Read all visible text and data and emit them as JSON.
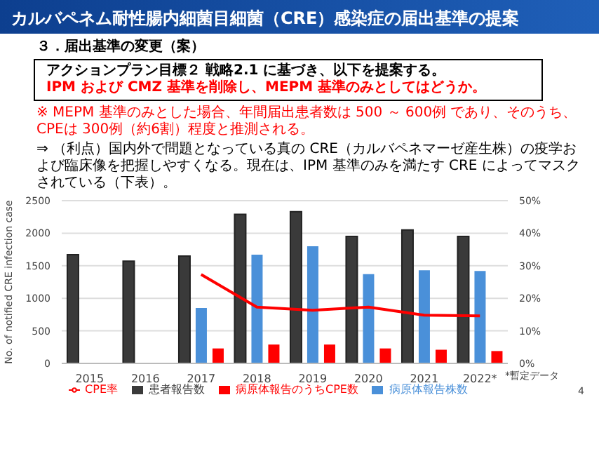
{
  "chart_data": {
    "type": "bar",
    "title": "カルバペネム耐性腸内細菌目細菌（CRE）感染症の届出基準の提案",
    "subtitle": "３．届出基準の変更（案）",
    "annotations": [
      "アクションプラン目標２ 戦略2.1 に基づき、以下を提案する。",
      "IPM および CMZ 基準を削除し、MEPM 基準のみとしてはどうか。",
      "※ MEPM 基準のみとした場合、年間届出患者数は 500 ～ 600例 であり、そのうち、CPEは 300例（約6割）程度と推測される。",
      "⇒ （利点）国内外で問題となっている真の CRE（カルバペネマーゼ産生株）の疫学および臨床像を把握しやすくなる。現在は、IPM 基準のみを満たす CRE によってマスクされている（下表）。",
      "*暫定データ",
      "4"
    ],
    "ylabel": "No. of notified CRE infection case",
    "categories": [
      "2015",
      "2016",
      "2017",
      "2018",
      "2019",
      "2020",
      "2021",
      "2022*"
    ],
    "series": [
      {
        "name": "患者報告数",
        "color": "#3a3a3a",
        "values": [
          1670,
          1570,
          1650,
          2290,
          2330,
          1950,
          2050,
          1950
        ]
      },
      {
        "name": "病原体報告株数",
        "color": "#4a90d9",
        "values": [
          null,
          null,
          850,
          1670,
          1800,
          1370,
          1430,
          1420
        ]
      },
      {
        "name": "病原体報告のうちCPE数",
        "color": "#ff0000",
        "values": [
          null,
          null,
          230,
          290,
          290,
          230,
          210,
          190
        ]
      },
      {
        "name": "CPE率",
        "type": "line",
        "axis": "y2",
        "color": "#ff0000",
        "values": [
          null,
          null,
          27.3,
          17.3,
          16.3,
          17.3,
          14.8,
          14.6
        ]
      }
    ],
    "ylim": [
      0,
      2500
    ],
    "yticks": [
      0,
      500,
      1000,
      1500,
      2000,
      2500
    ],
    "y2lim": [
      0,
      50
    ],
    "y2ticks": [
      {
        "value": 0,
        "label": "0%"
      },
      {
        "value": 10,
        "label": "10%"
      },
      {
        "value": 20,
        "label": "20%"
      },
      {
        "value": 30,
        "label": "30%"
      },
      {
        "value": 40,
        "label": "40%"
      },
      {
        "value": 50,
        "label": "50%"
      }
    ],
    "grid": "y",
    "legend": "bottom",
    "marker": "none"
  }
}
